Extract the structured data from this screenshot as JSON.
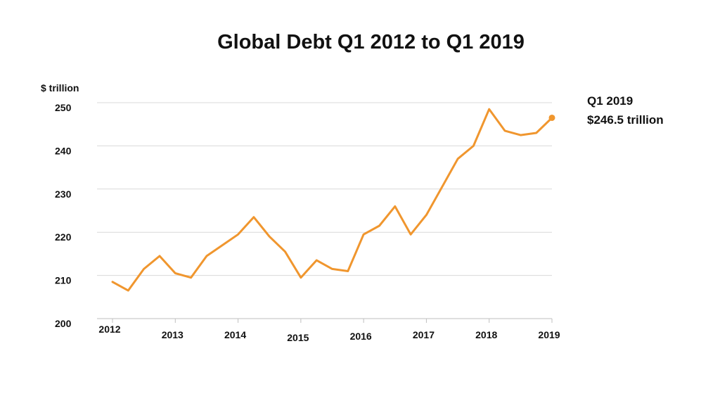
{
  "chart_data": {
    "type": "line",
    "title": "Global Debt Q1 2012 to Q1 2019",
    "ylabel": "$ trillion",
    "xlabel": "",
    "ylim": [
      200,
      250
    ],
    "yticks": [
      200,
      210,
      220,
      230,
      240,
      250
    ],
    "xtick_labels": [
      "2012",
      "2013",
      "2014",
      "2015",
      "2016",
      "2017",
      "2018",
      "2019"
    ],
    "x_range": [
      2012,
      2019
    ],
    "grid": "horizontal",
    "series": [
      {
        "color": "#f0962e",
        "points": [
          {
            "x": 2012.0,
            "y": 208.5
          },
          {
            "x": 2012.25,
            "y": 206.5
          },
          {
            "x": 2012.5,
            "y": 211.5
          },
          {
            "x": 2012.75,
            "y": 214.5
          },
          {
            "x": 2013.0,
            "y": 210.5
          },
          {
            "x": 2013.25,
            "y": 209.5
          },
          {
            "x": 2013.5,
            "y": 214.5
          },
          {
            "x": 2013.75,
            "y": 217.0
          },
          {
            "x": 2014.0,
            "y": 219.5
          },
          {
            "x": 2014.25,
            "y": 223.5
          },
          {
            "x": 2014.5,
            "y": 219.0
          },
          {
            "x": 2014.75,
            "y": 215.5
          },
          {
            "x": 2015.0,
            "y": 209.5
          },
          {
            "x": 2015.25,
            "y": 213.5
          },
          {
            "x": 2015.5,
            "y": 211.5
          },
          {
            "x": 2015.75,
            "y": 211.0
          },
          {
            "x": 2016.0,
            "y": 219.5
          },
          {
            "x": 2016.25,
            "y": 221.5
          },
          {
            "x": 2016.5,
            "y": 226.0
          },
          {
            "x": 2016.75,
            "y": 219.5
          },
          {
            "x": 2017.0,
            "y": 224.0
          },
          {
            "x": 2017.25,
            "y": 230.5
          },
          {
            "x": 2017.5,
            "y": 237.0
          },
          {
            "x": 2017.75,
            "y": 240.0
          },
          {
            "x": 2018.0,
            "y": 248.5
          },
          {
            "x": 2018.25,
            "y": 243.5
          },
          {
            "x": 2018.5,
            "y": 242.5
          },
          {
            "x": 2018.75,
            "y": 243.0
          },
          {
            "x": 2019.0,
            "y": 246.5
          }
        ]
      }
    ],
    "annotation": {
      "line1": "Q1 2019",
      "line2": "$246.5 trillion",
      "x": 2019.0,
      "y": 246.5
    }
  }
}
